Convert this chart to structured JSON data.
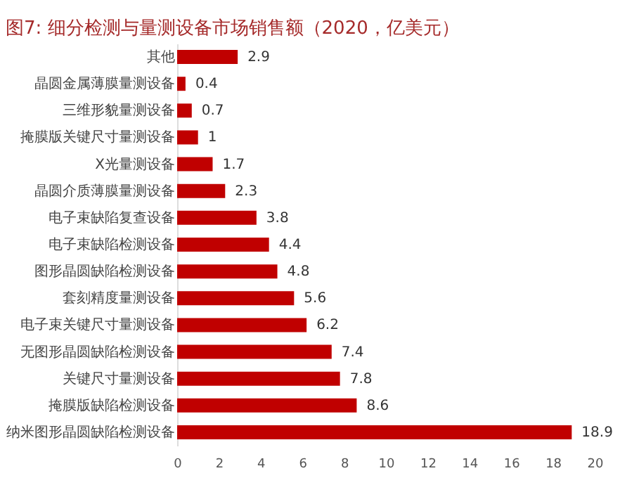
{
  "chart_data": {
    "type": "bar",
    "orientation": "horizontal",
    "title": "图7:  细分检测与量测设备市场销售额（2020，亿美元）",
    "categories": [
      "其他",
      "晶圆金属薄膜量测设备",
      "三维形貌量测设备",
      "掩膜版关键尺寸量测设备",
      "X光量测设备",
      "晶圆介质薄膜量测设备",
      "电子束缺陷复查设备",
      "电子束缺陷检测设备",
      "图形晶圆缺陷检测设备",
      "套刻精度量测设备",
      "电子束关键尺寸量测设备",
      "无图形晶圆缺陷检测设备",
      "关键尺寸量测设备",
      "掩膜版缺陷检测设备",
      "纳米图形晶圆缺陷检测设备"
    ],
    "values": [
      2.9,
      0.4,
      0.7,
      1,
      1.7,
      2.3,
      3.8,
      4.4,
      4.8,
      5.6,
      6.2,
      7.4,
      7.8,
      8.6,
      18.9
    ],
    "color": "#c00000",
    "xlim": [
      0,
      20
    ],
    "xticks": [
      0,
      2,
      4,
      6,
      8,
      10,
      12,
      14,
      16,
      18,
      20
    ],
    "data_labels": true,
    "grid": false
  }
}
